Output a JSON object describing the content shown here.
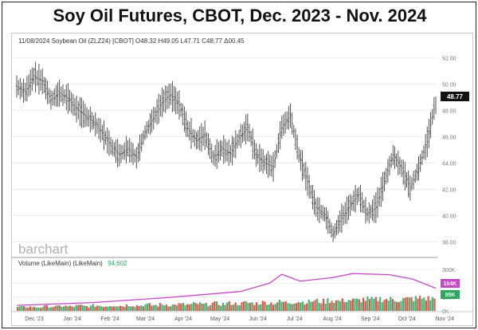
{
  "title": "Soy Oil Futures, CBOT, Dec. 2023 - Nov. 2024",
  "header_info": "11/08/2024 Soybean Oil (ZLZ24) [CBOT] O48.32 H49.05 L47.71 C48.77 Δ00.45",
  "watermark": "barchart",
  "last_price_label": "48.77",
  "volume_label": "Volume (LikeMain) (LikeMain)",
  "volume_value": "94,602",
  "volume_avg_tag": "164K",
  "volume_last_tag": "95K",
  "colors": {
    "bar": "#404040",
    "volume_up": "#3bb87a",
    "volume_down": "#e0584a",
    "average_line": "#c648c8",
    "price_tag": "#111111",
    "avg_tag": "#c648c8",
    "vol_tag": "#2fa55f"
  },
  "chart_data": [
    {
      "type": "ohlc",
      "title": "Soy Oil Futures, CBOT, Dec. 2023 - Nov. 2024",
      "ylim": [
        37,
        52.5
      ],
      "y_ticks": [
        "52.00",
        "50.00",
        "48.00",
        "46.00",
        "44.00",
        "42.00",
        "40.00",
        "38.00"
      ],
      "x_ticks": [
        "Dec '23",
        "Jan '24",
        "Feb '24",
        "Mar '24",
        "Apr '24",
        "May '24",
        "Jun '24",
        "Jul '24",
        "Aug '24",
        "Sep '24",
        "Oct '24",
        "Nov '24"
      ],
      "x_range": [
        "2023-12-01",
        "2024-11-08"
      ],
      "series": [
        {
          "close_points": [
            [
              "2023-12-01",
              49.8
            ],
            [
              "2023-12-08",
              49.4
            ],
            [
              "2023-12-15",
              50.6
            ],
            [
              "2023-12-22",
              50.2
            ],
            [
              "2023-12-29",
              48.8
            ],
            [
              "2024-01-05",
              49.3
            ],
            [
              "2024-01-12",
              48.9
            ],
            [
              "2024-01-19",
              48.1
            ],
            [
              "2024-01-26",
              47.6
            ],
            [
              "2024-02-02",
              47.1
            ],
            [
              "2024-02-09",
              46.3
            ],
            [
              "2024-02-16",
              45.3
            ],
            [
              "2024-02-23",
              44.6
            ],
            [
              "2024-03-01",
              45.1
            ],
            [
              "2024-03-08",
              44.4
            ],
            [
              "2024-03-15",
              46.3
            ],
            [
              "2024-03-22",
              47.4
            ],
            [
              "2024-03-29",
              48.6
            ],
            [
              "2024-04-05",
              49.2
            ],
            [
              "2024-04-12",
              48.4
            ],
            [
              "2024-04-19",
              46.6
            ],
            [
              "2024-04-26",
              45.7
            ],
            [
              "2024-05-03",
              46.1
            ],
            [
              "2024-05-10",
              44.4
            ],
            [
              "2024-05-17",
              45.1
            ],
            [
              "2024-05-24",
              44.7
            ],
            [
              "2024-05-31",
              45.9
            ],
            [
              "2024-06-07",
              46.7
            ],
            [
              "2024-06-14",
              44.6
            ],
            [
              "2024-06-21",
              44.0
            ],
            [
              "2024-06-28",
              43.7
            ],
            [
              "2024-07-05",
              46.7
            ],
            [
              "2024-07-12",
              47.6
            ],
            [
              "2024-07-19",
              44.6
            ],
            [
              "2024-07-26",
              42.6
            ],
            [
              "2024-08-02",
              40.6
            ],
            [
              "2024-08-09",
              40.1
            ],
            [
              "2024-08-16",
              38.6
            ],
            [
              "2024-08-23",
              39.8
            ],
            [
              "2024-08-30",
              40.8
            ],
            [
              "2024-09-06",
              41.6
            ],
            [
              "2024-09-13",
              40.1
            ],
            [
              "2024-09-20",
              40.6
            ],
            [
              "2024-09-27",
              42.6
            ],
            [
              "2024-10-04",
              44.6
            ],
            [
              "2024-10-11",
              43.6
            ],
            [
              "2024-10-18",
              42.1
            ],
            [
              "2024-10-25",
              43.6
            ],
            [
              "2024-11-01",
              45.6
            ],
            [
              "2024-11-08",
              48.77
            ]
          ]
        }
      ]
    },
    {
      "type": "bar",
      "title": "Volume (LikeMain) (LikeMain)",
      "ylim": [
        0,
        300
      ],
      "y_ticks": [
        "300K",
        "200K",
        "100K",
        "0K"
      ],
      "series": [
        {
          "values": [
            30,
            32,
            28,
            35,
            33,
            38,
            34,
            40,
            36,
            42,
            38,
            44,
            40,
            46,
            42,
            48,
            44,
            50,
            46,
            52,
            48,
            55,
            50,
            58,
            54,
            60,
            56,
            63,
            60,
            66,
            62,
            70,
            66,
            74,
            70,
            78,
            74,
            82,
            78,
            86,
            82,
            90,
            86,
            94,
            90,
            88,
            92,
            96,
            100,
            95
          ]
        },
        {
          "name": "LikeMain average",
          "points": [
            [
              "2023-12-01",
              40
            ],
            [
              "2024-02-01",
              60
            ],
            [
              "2024-04-01",
              95
            ],
            [
              "2024-06-01",
              140
            ],
            [
              "2024-06-25",
              200
            ],
            [
              "2024-07-05",
              265
            ],
            [
              "2024-07-20",
              215
            ],
            [
              "2024-08-15",
              240
            ],
            [
              "2024-09-01",
              270
            ],
            [
              "2024-10-01",
              262
            ],
            [
              "2024-10-20",
              230
            ],
            [
              "2024-11-08",
              164
            ]
          ]
        }
      ]
    }
  ]
}
